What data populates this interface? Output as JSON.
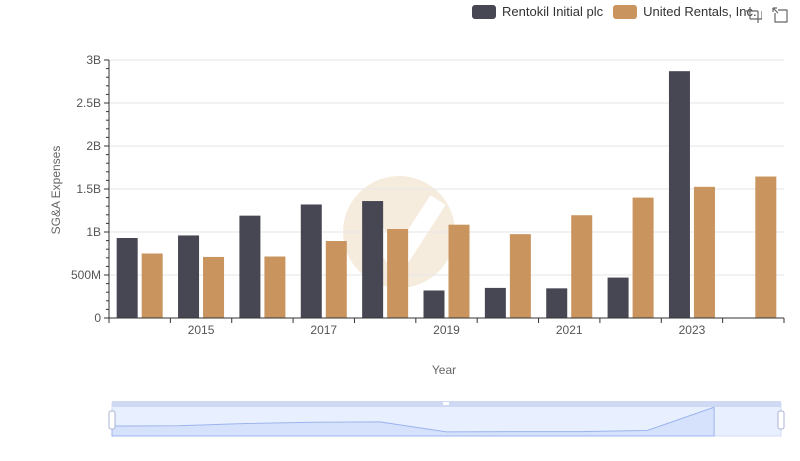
{
  "legend": {
    "items": [
      {
        "label": "Rentokil Initial plc",
        "color": "#474753"
      },
      {
        "label": "United Rentals, Inc.",
        "color": "#c9945e"
      }
    ]
  },
  "toolbar": {
    "zoom_icon": "zoom-select-icon",
    "restore_icon": "restore-icon"
  },
  "chart_data": {
    "type": "bar",
    "xlabel": "Year",
    "ylabel": "SG&A Expenses",
    "categories": [
      "2014",
      "2015",
      "2016",
      "2017",
      "2018",
      "2019",
      "2020",
      "2021",
      "2022",
      "2023",
      "2024"
    ],
    "x_tick_labels": [
      "2015",
      "2017",
      "2019",
      "2021",
      "2023"
    ],
    "y_tick_labels": [
      "0",
      "500M",
      "1B",
      "1.5B",
      "2B",
      "2.5B",
      "3B"
    ],
    "y_ticks": [
      0,
      500000000,
      1000000000,
      1500000000,
      2000000000,
      2500000000,
      3000000000
    ],
    "ylim": [
      0,
      3000000000
    ],
    "series": [
      {
        "name": "Rentokil Initial plc",
        "color": "#474753",
        "values": [
          930000000,
          960000000,
          1190000000,
          1320000000,
          1360000000,
          320000000,
          350000000,
          345000000,
          470000000,
          2870000000,
          null
        ]
      },
      {
        "name": "United Rentals, Inc.",
        "color": "#c9945e",
        "values": [
          750000000,
          710000000,
          715000000,
          895000000,
          1035000000,
          1085000000,
          975000000,
          1195000000,
          1400000000,
          1525000000,
          1645000000
        ]
      }
    ],
    "grid": true,
    "legend_position": "top-right",
    "dataZoom": true
  }
}
